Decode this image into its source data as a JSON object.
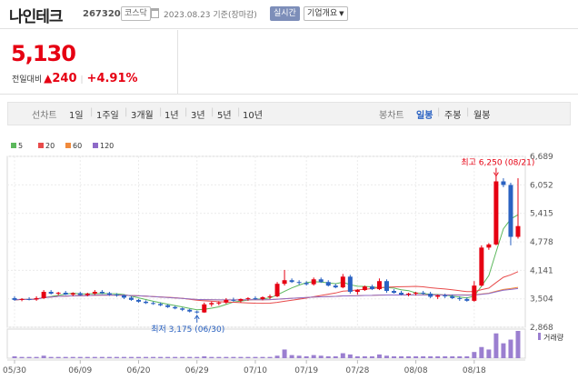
{
  "header": {
    "name": "나인테크",
    "code": "267320",
    "market": "코스닥",
    "date": "2023.08.23 기준(장마감)",
    "realtime_label": "실시간",
    "company_label": "기업개요"
  },
  "price": {
    "current": "5,130",
    "change_label": "전일대비",
    "change_points": "240",
    "change_pct": "+4.91%"
  },
  "tabs": {
    "period_label": "선차트",
    "periods": [
      "1일",
      "1주일",
      "3개월",
      "1년",
      "3년",
      "5년",
      "10년"
    ],
    "candle_label": "봉차트",
    "candles": [
      "일봉",
      "주봉",
      "월봉"
    ],
    "active_candle": "일봉"
  },
  "chart_data": {
    "type": "candlestick",
    "legend": [
      "5",
      "20",
      "60",
      "120"
    ],
    "legend_colors": [
      "#5cb85c",
      "#e84b4b",
      "#f08a3c",
      "#8e6ac8"
    ],
    "y_ticks": [
      "6,689",
      "6,052",
      "5,415",
      "4,778",
      "4,141",
      "3,504",
      "2,868"
    ],
    "y_tick_values": [
      6689,
      6052,
      5415,
      4778,
      4141,
      3504,
      2868
    ],
    "ylim": [
      2868,
      6689
    ],
    "x_ticks": [
      "05/30",
      "06/09",
      "06/20",
      "06/29",
      "07/10",
      "07/19",
      "07/28",
      "08/08",
      "08/18"
    ],
    "high_label": "최고 6,250 (08/21)",
    "low_label": "최저 3,175 (06/30)",
    "volume_label": "거래량",
    "up_color": "#e60012",
    "down_color": "#2a62c2",
    "candles": [
      [
        3520,
        3560,
        3460,
        3480
      ],
      [
        3480,
        3520,
        3450,
        3500
      ],
      [
        3500,
        3540,
        3470,
        3490
      ],
      [
        3490,
        3560,
        3460,
        3520
      ],
      [
        3520,
        3700,
        3500,
        3660
      ],
      [
        3660,
        3700,
        3600,
        3620
      ],
      [
        3620,
        3660,
        3580,
        3640
      ],
      [
        3640,
        3680,
        3590,
        3600
      ],
      [
        3600,
        3650,
        3560,
        3630
      ],
      [
        3630,
        3660,
        3570,
        3590
      ],
      [
        3590,
        3640,
        3560,
        3620
      ],
      [
        3620,
        3700,
        3590,
        3660
      ],
      [
        3660,
        3700,
        3610,
        3630
      ],
      [
        3630,
        3660,
        3570,
        3600
      ],
      [
        3600,
        3630,
        3550,
        3580
      ],
      [
        3580,
        3600,
        3500,
        3530
      ],
      [
        3530,
        3560,
        3460,
        3480
      ],
      [
        3480,
        3500,
        3420,
        3440
      ],
      [
        3440,
        3470,
        3390,
        3410
      ],
      [
        3410,
        3440,
        3370,
        3390
      ],
      [
        3390,
        3420,
        3340,
        3360
      ],
      [
        3360,
        3380,
        3300,
        3320
      ],
      [
        3320,
        3350,
        3270,
        3290
      ],
      [
        3290,
        3310,
        3230,
        3260
      ],
      [
        3260,
        3280,
        3200,
        3220
      ],
      [
        3220,
        3240,
        3175,
        3200
      ],
      [
        3200,
        3420,
        3190,
        3380
      ],
      [
        3380,
        3440,
        3330,
        3410
      ],
      [
        3410,
        3450,
        3360,
        3420
      ],
      [
        3420,
        3520,
        3390,
        3480
      ],
      [
        3480,
        3530,
        3440,
        3460
      ],
      [
        3460,
        3510,
        3420,
        3500
      ],
      [
        3500,
        3540,
        3460,
        3520
      ],
      [
        3520,
        3560,
        3480,
        3500
      ],
      [
        3500,
        3560,
        3470,
        3540
      ],
      [
        3540,
        3600,
        3500,
        3560
      ],
      [
        3560,
        3880,
        3540,
        3840
      ],
      [
        3840,
        4150,
        3800,
        3920
      ],
      [
        3920,
        3960,
        3860,
        3880
      ],
      [
        3880,
        3920,
        3820,
        3860
      ],
      [
        3860,
        3900,
        3800,
        3830
      ],
      [
        3830,
        3980,
        3800,
        3940
      ],
      [
        3940,
        3980,
        3860,
        3880
      ],
      [
        3880,
        3920,
        3780,
        3800
      ],
      [
        3800,
        3840,
        3740,
        3760
      ],
      [
        3760,
        4060,
        3740,
        4000
      ],
      [
        4000,
        4040,
        3620,
        3660
      ],
      [
        3660,
        3720,
        3600,
        3700
      ],
      [
        3700,
        3800,
        3680,
        3780
      ],
      [
        3780,
        3820,
        3700,
        3720
      ],
      [
        3720,
        3960,
        3700,
        3900
      ],
      [
        3900,
        3940,
        3640,
        3680
      ],
      [
        3680,
        3720,
        3620,
        3640
      ],
      [
        3640,
        3680,
        3580,
        3600
      ],
      [
        3600,
        3640,
        3560,
        3620
      ],
      [
        3620,
        3660,
        3580,
        3640
      ],
      [
        3640,
        3680,
        3600,
        3620
      ],
      [
        3620,
        3660,
        3520,
        3550
      ],
      [
        3550,
        3600,
        3500,
        3580
      ],
      [
        3580,
        3620,
        3520,
        3560
      ],
      [
        3560,
        3600,
        3500,
        3520
      ],
      [
        3520,
        3560,
        3460,
        3500
      ],
      [
        3500,
        3540,
        3440,
        3460
      ],
      [
        3460,
        3900,
        3440,
        3800
      ],
      [
        3800,
        4700,
        3780,
        4650
      ],
      [
        4650,
        4750,
        4600,
        4720
      ],
      [
        4720,
        6250,
        4700,
        6130
      ],
      [
        6130,
        6200,
        6000,
        6050
      ],
      [
        6050,
        6100,
        4700,
        4890
      ],
      [
        4890,
        6200,
        4850,
        5130
      ]
    ],
    "volumes": [
      3,
      2,
      2,
      2,
      4,
      2,
      2,
      2,
      2,
      2,
      2,
      2,
      2,
      2,
      2,
      2,
      2,
      2,
      2,
      2,
      2,
      2,
      2,
      2,
      2,
      2,
      3,
      2,
      2,
      2,
      2,
      2,
      2,
      2,
      2,
      2,
      4,
      14,
      5,
      4,
      3,
      5,
      4,
      3,
      3,
      8,
      6,
      3,
      3,
      3,
      6,
      4,
      3,
      3,
      3,
      3,
      3,
      3,
      3,
      3,
      3,
      3,
      3,
      10,
      18,
      14,
      40,
      24,
      30,
      44
    ]
  }
}
